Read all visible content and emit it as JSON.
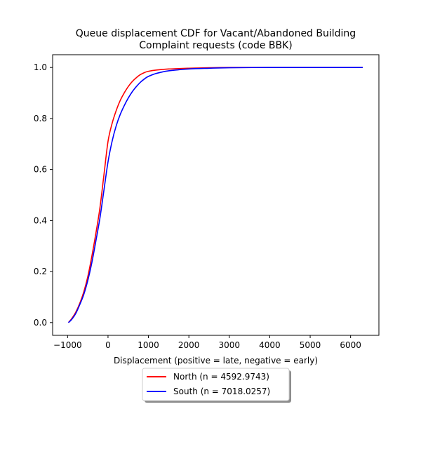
{
  "chart_data": {
    "type": "line",
    "title_lines": [
      "Queue displacement CDF for Vacant/Abandoned Building",
      "Complaint  requests (code BBK)"
    ],
    "xlabel": "Displacement (positive = late, negative = early)",
    "ylabel": "",
    "xlim": [
      -1370,
      6700
    ],
    "ylim": [
      -0.05,
      1.05
    ],
    "x_ticks": [
      -1000,
      0,
      1000,
      2000,
      3000,
      4000,
      5000,
      6000
    ],
    "x_tick_labels": [
      "−1000",
      "0",
      "1000",
      "2000",
      "3000",
      "4000",
      "5000",
      "6000"
    ],
    "y_ticks": [
      0.0,
      0.2,
      0.4,
      0.6,
      0.8,
      1.0
    ],
    "y_tick_labels": [
      "0.0",
      "0.2",
      "0.4",
      "0.6",
      "0.8",
      "1.0"
    ],
    "grid": false,
    "legend_placement": "below-center",
    "series": [
      {
        "name": "North (n = 4592.9743)",
        "color": "#ff0000",
        "x": [
          -980,
          -900,
          -800,
          -700,
          -600,
          -500,
          -400,
          -300,
          -200,
          -100,
          0,
          100,
          200,
          300,
          400,
          500,
          600,
          700,
          800,
          900,
          1000,
          1200,
          1500,
          2000,
          2500,
          3000,
          4000,
          5000,
          6300
        ],
        "y": [
          0.0,
          0.015,
          0.04,
          0.075,
          0.12,
          0.18,
          0.26,
          0.35,
          0.45,
          0.58,
          0.71,
          0.78,
          0.83,
          0.87,
          0.9,
          0.925,
          0.945,
          0.96,
          0.972,
          0.98,
          0.985,
          0.99,
          0.994,
          0.997,
          0.999,
          1.0,
          1.0,
          1.0,
          1.0
        ]
      },
      {
        "name": "South (n = 7018.0257)",
        "color": "#0000ff",
        "x": [
          -980,
          -900,
          -800,
          -700,
          -600,
          -500,
          -400,
          -300,
          -200,
          -100,
          0,
          100,
          200,
          300,
          400,
          500,
          600,
          700,
          800,
          900,
          1000,
          1200,
          1500,
          2000,
          2500,
          3000,
          4000,
          5000,
          6300
        ],
        "y": [
          0.0,
          0.012,
          0.035,
          0.07,
          0.11,
          0.165,
          0.235,
          0.32,
          0.41,
          0.52,
          0.63,
          0.71,
          0.77,
          0.815,
          0.85,
          0.88,
          0.905,
          0.925,
          0.942,
          0.955,
          0.965,
          0.977,
          0.987,
          0.994,
          0.997,
          0.999,
          1.0,
          1.0,
          1.0
        ]
      }
    ]
  }
}
